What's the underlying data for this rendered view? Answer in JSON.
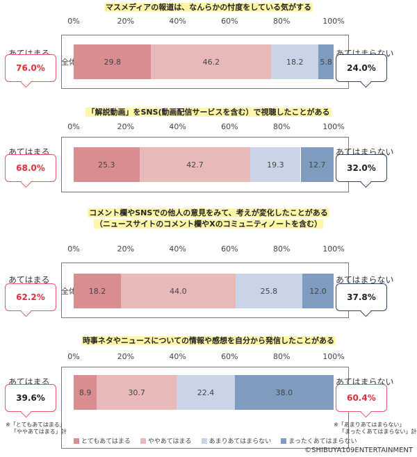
{
  "axis_ticks": [
    "0%",
    "20%",
    "40%",
    "60%",
    "80%",
    "100%"
  ],
  "left_label": "あてはまる",
  "right_label": "あてはまらない",
  "colors": {
    "very_applies": "#d98d91",
    "somewhat_applies": "#e9b9ba",
    "not_much": "#c9d5e6",
    "not_at_all": "#7e9bc0"
  },
  "chart_data": [
    {
      "type": "bar",
      "title": "マスメディアの報道は、なんらかの忖度をしている気がする",
      "category": "全体",
      "values": [
        29.8,
        46.2,
        18.2,
        5.8
      ],
      "applies_pct": "76.0%",
      "not_applies_pct": "24.0%"
    },
    {
      "type": "bar",
      "title": "「解説動画」をSNS(動画配信サービスを含む）で視聴したことがある",
      "category": "",
      "values": [
        25.3,
        42.7,
        19.3,
        12.7
      ],
      "applies_pct": "68.0%",
      "not_applies_pct": "32.0%"
    },
    {
      "type": "bar",
      "title": "コメント欄やSNSでの他人の意見をみて、考えが変化したことがある",
      "subtitle": "（ニュースサイトのコメント欄やXのコミュニティノートを含む）",
      "category": "全体",
      "values": [
        18.2,
        44.0,
        25.8,
        12.0
      ],
      "applies_pct": "62.2%",
      "not_applies_pct": "37.8%"
    },
    {
      "type": "bar",
      "title": "時事ネタやニュースについての情報や感想を自分から発信したことがある",
      "category": "",
      "values": [
        8.9,
        30.7,
        22.4,
        38.0
      ],
      "applies_pct": "39.6%",
      "not_applies_pct": "60.4%"
    }
  ],
  "legend": [
    "とてもあてはまる",
    "ややあてはまる",
    "あまりあてはまらない",
    "まったくあてはまらない"
  ],
  "note_left": [
    "※「とてもあてはまる」",
    "「ややあてはまる」計"
  ],
  "note_right": [
    "※「あまりあてはまらない」",
    "「まったくあてはまらない」計"
  ],
  "copyright": "©SHIBUYA109ENTERTAINMENT"
}
